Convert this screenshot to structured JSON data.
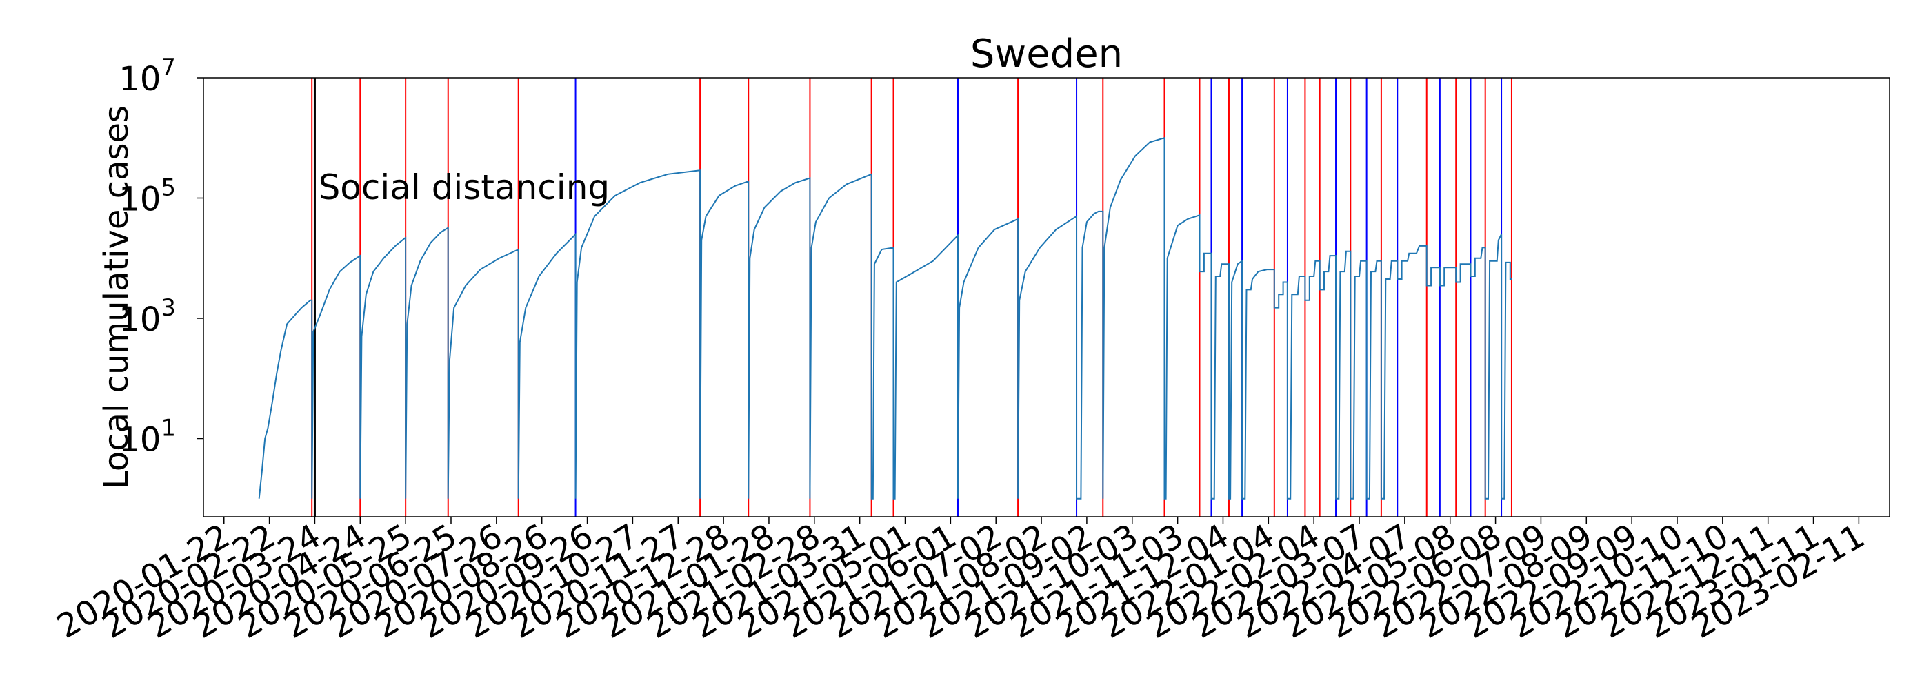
{
  "chart_data": {
    "type": "line",
    "title": "Sweden",
    "xlabel": "",
    "ylabel": "Local cumulative cases",
    "yscale": "log",
    "ylim": [
      0.5,
      10000000
    ],
    "x_range": [
      "2020-01-08",
      "2023-03-04"
    ],
    "y_ticks": [
      {
        "base": "10",
        "exp": "1",
        "value": 10
      },
      {
        "base": "10",
        "exp": "3",
        "value": 1000
      },
      {
        "base": "10",
        "exp": "5",
        "value": 100000
      },
      {
        "base": "10",
        "exp": "7",
        "value": 10000000
      }
    ],
    "x_ticks": [
      "2020-01-22",
      "2020-02-22",
      "2020-03-24",
      "2020-04-24",
      "2020-05-25",
      "2020-06-25",
      "2020-07-26",
      "2020-08-26",
      "2020-09-26",
      "2020-10-27",
      "2020-11-27",
      "2020-12-28",
      "2021-01-28",
      "2021-02-28",
      "2021-03-31",
      "2021-05-01",
      "2021-06-01",
      "2021-07-02",
      "2021-08-02",
      "2021-09-02",
      "2021-10-03",
      "2021-11-03",
      "2021-12-04",
      "2022-01-04",
      "2022-02-04",
      "2022-03-07",
      "2022-04-07",
      "2022-05-08",
      "2022-06-08",
      "2022-07-09",
      "2022-08-09",
      "2022-09-09",
      "2022-10-10",
      "2022-11-10",
      "2022-12-11",
      "2023-01-11",
      "2023-02-11"
    ],
    "annotations": [
      {
        "text": "Social distancing",
        "x": "2020-03-17",
        "y": 150000
      }
    ],
    "intervention_line": {
      "date": "2020-03-24",
      "color": "#000000"
    },
    "vline_colors": {
      "red": "#ff0000",
      "blue": "#0000ff"
    },
    "series_color": "#1f77b4",
    "vlines": [
      {
        "date": "2020-03-22",
        "color": "red"
      },
      {
        "date": "2020-04-24",
        "color": "red"
      },
      {
        "date": "2020-05-25",
        "color": "red"
      },
      {
        "date": "2020-06-23",
        "color": "red"
      },
      {
        "date": "2020-08-10",
        "color": "red"
      },
      {
        "date": "2020-09-18",
        "color": "blue"
      },
      {
        "date": "2020-12-12",
        "color": "red"
      },
      {
        "date": "2021-01-14",
        "color": "red"
      },
      {
        "date": "2021-02-25",
        "color": "red"
      },
      {
        "date": "2021-04-08",
        "color": "red"
      },
      {
        "date": "2021-04-23",
        "color": "red"
      },
      {
        "date": "2021-06-06",
        "color": "blue"
      },
      {
        "date": "2021-07-17",
        "color": "red"
      },
      {
        "date": "2021-08-26",
        "color": "blue"
      },
      {
        "date": "2021-09-13",
        "color": "red"
      },
      {
        "date": "2021-10-25",
        "color": "red"
      },
      {
        "date": "2021-11-18",
        "color": "red"
      },
      {
        "date": "2021-11-26",
        "color": "blue"
      },
      {
        "date": "2021-12-08",
        "color": "red"
      },
      {
        "date": "2021-12-17",
        "color": "blue"
      },
      {
        "date": "2022-01-08",
        "color": "red"
      },
      {
        "date": "2022-01-17",
        "color": "blue"
      },
      {
        "date": "2022-01-29",
        "color": "red"
      },
      {
        "date": "2022-02-08",
        "color": "red"
      },
      {
        "date": "2022-02-19",
        "color": "blue"
      },
      {
        "date": "2022-03-01",
        "color": "red"
      },
      {
        "date": "2022-03-12",
        "color": "blue"
      },
      {
        "date": "2022-03-22",
        "color": "red"
      },
      {
        "date": "2022-04-02",
        "color": "blue"
      },
      {
        "date": "2022-04-22",
        "color": "red"
      },
      {
        "date": "2022-05-01",
        "color": "blue"
      },
      {
        "date": "2022-05-12",
        "color": "red"
      },
      {
        "date": "2022-05-22",
        "color": "blue"
      },
      {
        "date": "2022-06-01",
        "color": "red"
      },
      {
        "date": "2022-06-12",
        "color": "blue"
      },
      {
        "date": "2022-06-19",
        "color": "red"
      }
    ],
    "series": [
      {
        "points": [
          [
            "2020-02-15",
            1
          ],
          [
            "2020-02-17",
            3
          ],
          [
            "2020-02-19",
            10
          ],
          [
            "2020-02-21",
            15
          ],
          [
            "2020-02-24",
            40
          ],
          [
            "2020-02-27",
            120
          ],
          [
            "2020-03-01",
            300
          ],
          [
            "2020-03-05",
            800
          ],
          [
            "2020-03-10",
            1100
          ],
          [
            "2020-03-15",
            1500
          ],
          [
            "2020-03-21",
            2000
          ],
          [
            "2020-03-22",
            2000
          ],
          [
            "2020-03-22",
            1
          ],
          [
            "2020-03-23",
            600
          ],
          [
            "2020-03-28",
            1200
          ],
          [
            "2020-04-03",
            3000
          ],
          [
            "2020-04-10",
            6000
          ],
          [
            "2020-04-17",
            8500
          ],
          [
            "2020-04-24",
            11000
          ],
          [
            "2020-04-24",
            1
          ],
          [
            "2020-04-25",
            500
          ],
          [
            "2020-04-28",
            2500
          ],
          [
            "2020-05-03",
            6000
          ],
          [
            "2020-05-10",
            10000
          ],
          [
            "2020-05-18",
            16000
          ],
          [
            "2020-05-25",
            22000
          ],
          [
            "2020-05-25",
            1
          ],
          [
            "2020-05-26",
            800
          ],
          [
            "2020-05-29",
            3500
          ],
          [
            "2020-06-04",
            9000
          ],
          [
            "2020-06-11",
            18000
          ],
          [
            "2020-06-18",
            27000
          ],
          [
            "2020-06-23",
            32000
          ],
          [
            "2020-06-23",
            1
          ],
          [
            "2020-06-24",
            200
          ],
          [
            "2020-06-27",
            1500
          ],
          [
            "2020-07-05",
            3500
          ],
          [
            "2020-07-15",
            6500
          ],
          [
            "2020-07-28",
            10000
          ],
          [
            "2020-08-10",
            14000
          ],
          [
            "2020-08-10",
            1
          ],
          [
            "2020-08-11",
            400
          ],
          [
            "2020-08-15",
            1500
          ],
          [
            "2020-08-24",
            5000
          ],
          [
            "2020-09-05",
            12000
          ],
          [
            "2020-09-18",
            25000
          ],
          [
            "2020-09-18",
            1
          ],
          [
            "2020-09-19",
            4000
          ],
          [
            "2020-09-22",
            15000
          ],
          [
            "2020-10-01",
            50000
          ],
          [
            "2020-10-15",
            110000
          ],
          [
            "2020-11-01",
            180000
          ],
          [
            "2020-11-20",
            250000
          ],
          [
            "2020-12-12",
            290000
          ],
          [
            "2020-12-12",
            1
          ],
          [
            "2020-12-13",
            20000
          ],
          [
            "2020-12-16",
            50000
          ],
          [
            "2020-12-25",
            110000
          ],
          [
            "2021-01-05",
            160000
          ],
          [
            "2021-01-14",
            190000
          ],
          [
            "2021-01-14",
            1
          ],
          [
            "2021-01-15",
            10000
          ],
          [
            "2021-01-18",
            30000
          ],
          [
            "2021-01-25",
            70000
          ],
          [
            "2021-02-05",
            130000
          ],
          [
            "2021-02-15",
            180000
          ],
          [
            "2021-02-25",
            215000
          ],
          [
            "2021-02-25",
            1
          ],
          [
            "2021-02-26",
            15000
          ],
          [
            "2021-03-01",
            40000
          ],
          [
            "2021-03-10",
            100000
          ],
          [
            "2021-03-22",
            170000
          ],
          [
            "2021-04-08",
            250000
          ],
          [
            "2021-04-08",
            1
          ],
          [
            "2021-04-09",
            1
          ],
          [
            "2021-04-10",
            8000
          ],
          [
            "2021-04-15",
            14000
          ],
          [
            "2021-04-23",
            15000
          ],
          [
            "2021-04-23",
            1
          ],
          [
            "2021-04-24",
            1
          ],
          [
            "2021-04-25",
            4000
          ],
          [
            "2021-05-05",
            5500
          ],
          [
            "2021-05-20",
            9000
          ],
          [
            "2021-06-06",
            24000
          ],
          [
            "2021-06-06",
            1
          ],
          [
            "2021-06-07",
            1500
          ],
          [
            "2021-06-10",
            4000
          ],
          [
            "2021-06-20",
            15000
          ],
          [
            "2021-07-01",
            30000
          ],
          [
            "2021-07-17",
            45000
          ],
          [
            "2021-07-17",
            1
          ],
          [
            "2021-07-18",
            2000
          ],
          [
            "2021-07-22",
            6000
          ],
          [
            "2021-08-01",
            15000
          ],
          [
            "2021-08-12",
            30000
          ],
          [
            "2021-08-26",
            50000
          ],
          [
            "2021-08-26",
            1
          ],
          [
            "2021-08-29",
            1
          ],
          [
            "2021-08-30",
            15000
          ],
          [
            "2021-09-02",
            40000
          ],
          [
            "2021-09-07",
            55000
          ],
          [
            "2021-09-10",
            60000
          ],
          [
            "2021-09-13",
            60000
          ],
          [
            "2021-09-13",
            1
          ],
          [
            "2021-09-14",
            15000
          ],
          [
            "2021-09-18",
            70000
          ],
          [
            "2021-09-25",
            200000
          ],
          [
            "2021-10-05",
            500000
          ],
          [
            "2021-10-15",
            850000
          ],
          [
            "2021-10-25",
            1000000
          ],
          [
            "2021-10-25",
            1
          ],
          [
            "2021-10-26",
            1
          ],
          [
            "2021-10-27",
            10000
          ],
          [
            "2021-11-03",
            35000
          ],
          [
            "2021-11-10",
            45000
          ],
          [
            "2021-11-18",
            52000
          ],
          [
            "2021-11-18",
            6000
          ],
          [
            "2021-11-21",
            6000
          ],
          [
            "2021-11-21",
            12000
          ],
          [
            "2021-11-24",
            12000
          ],
          [
            "2021-11-26",
            12000
          ],
          [
            "2021-11-26",
            1
          ],
          [
            "2021-11-28",
            1
          ],
          [
            "2021-11-29",
            5000
          ],
          [
            "2021-12-02",
            5000
          ],
          [
            "2021-12-03",
            8000
          ],
          [
            "2021-12-08",
            8000
          ],
          [
            "2021-12-08",
            1
          ],
          [
            "2021-12-09",
            1
          ],
          [
            "2021-12-10",
            4000
          ],
          [
            "2021-12-14",
            8000
          ],
          [
            "2021-12-17",
            9000
          ],
          [
            "2021-12-17",
            1
          ],
          [
            "2021-12-19",
            1
          ],
          [
            "2021-12-20",
            3000
          ],
          [
            "2021-12-23",
            3000
          ],
          [
            "2021-12-24",
            4500
          ],
          [
            "2021-12-28",
            6000
          ],
          [
            "2022-01-03",
            6500
          ],
          [
            "2022-01-08",
            6500
          ],
          [
            "2022-01-08",
            1500
          ],
          [
            "2022-01-11",
            1500
          ],
          [
            "2022-01-11",
            2500
          ],
          [
            "2022-01-14",
            2500
          ],
          [
            "2022-01-14",
            4000
          ],
          [
            "2022-01-17",
            4000
          ],
          [
            "2022-01-17",
            1
          ],
          [
            "2022-01-19",
            1
          ],
          [
            "2022-01-20",
            2500
          ],
          [
            "2022-01-24",
            2500
          ],
          [
            "2022-01-25",
            5000
          ],
          [
            "2022-01-29",
            5000
          ],
          [
            "2022-01-29",
            2000
          ],
          [
            "2022-02-01",
            2000
          ],
          [
            "2022-02-01",
            5000
          ],
          [
            "2022-02-04",
            5000
          ],
          [
            "2022-02-05",
            9000
          ],
          [
            "2022-02-08",
            9000
          ],
          [
            "2022-02-08",
            3000
          ],
          [
            "2022-02-11",
            3000
          ],
          [
            "2022-02-11",
            6000
          ],
          [
            "2022-02-14",
            6000
          ],
          [
            "2022-02-15",
            11000
          ],
          [
            "2022-02-19",
            11000
          ],
          [
            "2022-02-19",
            1
          ],
          [
            "2022-02-21",
            1
          ],
          [
            "2022-02-22",
            6000
          ],
          [
            "2022-02-25",
            6000
          ],
          [
            "2022-02-26",
            13000
          ],
          [
            "2022-03-01",
            13000
          ],
          [
            "2022-03-01",
            1
          ],
          [
            "2022-03-03",
            1
          ],
          [
            "2022-03-04",
            5000
          ],
          [
            "2022-03-07",
            5000
          ],
          [
            "2022-03-08",
            9000
          ],
          [
            "2022-03-12",
            9000
          ],
          [
            "2022-03-12",
            1
          ],
          [
            "2022-03-14",
            1
          ],
          [
            "2022-03-15",
            6000
          ],
          [
            "2022-03-18",
            6000
          ],
          [
            "2022-03-19",
            9000
          ],
          [
            "2022-03-22",
            9000
          ],
          [
            "2022-03-22",
            1
          ],
          [
            "2022-03-24",
            1
          ],
          [
            "2022-03-25",
            4500
          ],
          [
            "2022-03-28",
            4500
          ],
          [
            "2022-03-29",
            9000
          ],
          [
            "2022-04-02",
            9000
          ],
          [
            "2022-04-02",
            4500
          ],
          [
            "2022-04-05",
            4500
          ],
          [
            "2022-04-05",
            9000
          ],
          [
            "2022-04-09",
            9000
          ],
          [
            "2022-04-10",
            12000
          ],
          [
            "2022-04-15",
            12000
          ],
          [
            "2022-04-17",
            16000
          ],
          [
            "2022-04-22",
            16000
          ],
          [
            "2022-04-22",
            3500
          ],
          [
            "2022-04-25",
            3500
          ],
          [
            "2022-04-25",
            7000
          ],
          [
            "2022-05-01",
            7000
          ],
          [
            "2022-05-01",
            3500
          ],
          [
            "2022-05-04",
            3500
          ],
          [
            "2022-05-04",
            7000
          ],
          [
            "2022-05-12",
            7000
          ],
          [
            "2022-05-12",
            4000
          ],
          [
            "2022-05-15",
            4000
          ],
          [
            "2022-05-15",
            8000
          ],
          [
            "2022-05-22",
            8000
          ],
          [
            "2022-05-22",
            5000
          ],
          [
            "2022-05-25",
            5000
          ],
          [
            "2022-05-25",
            10000
          ],
          [
            "2022-05-29",
            10000
          ],
          [
            "2022-05-30",
            15000
          ],
          [
            "2022-06-01",
            15000
          ],
          [
            "2022-06-01",
            1
          ],
          [
            "2022-06-03",
            1
          ],
          [
            "2022-06-04",
            9000
          ],
          [
            "2022-06-09",
            9000
          ],
          [
            "2022-06-10",
            20000
          ],
          [
            "2022-06-12",
            25000
          ],
          [
            "2022-06-12",
            1
          ],
          [
            "2022-06-14",
            1
          ],
          [
            "2022-06-15",
            8500
          ],
          [
            "2022-06-18",
            8500
          ],
          [
            "2022-06-18",
            4500
          ],
          [
            "2022-06-19",
            4500
          ]
        ]
      }
    ]
  }
}
